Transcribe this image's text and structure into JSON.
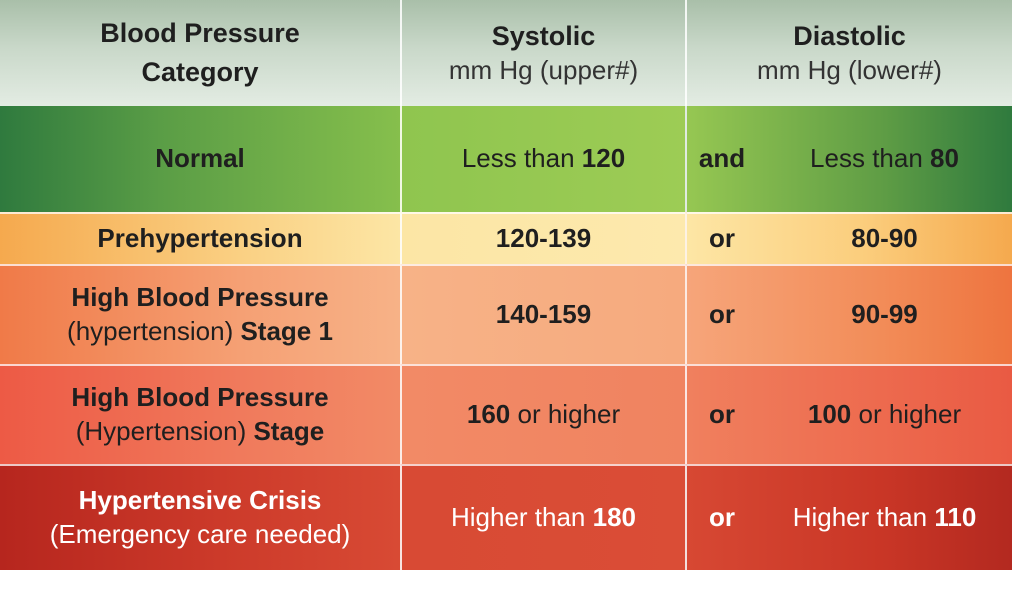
{
  "header": {
    "category_line1": "Blood Pressure",
    "category_line2": "Category",
    "systolic_title": "Systolic",
    "systolic_sub": "mm Hg (upper#)",
    "diastolic_title": "Diastolic",
    "diastolic_sub": "mm Hg (lower#)"
  },
  "rows": [
    {
      "category_bold": "Normal",
      "systolic_pre": "Less than ",
      "systolic_bold": "120",
      "conjunction": "and",
      "diastolic_pre": "Less than ",
      "diastolic_bold": "80",
      "color": "#8fc54f"
    },
    {
      "category_bold": "Prehypertension",
      "systolic_bold": "120-139",
      "conjunction": "or",
      "diastolic_bold": "80-90",
      "color": "#fde6a5"
    },
    {
      "category_line1": "High Blood Pressure",
      "category_line2_pre": "(hypertension) ",
      "category_line2_bold": "Stage 1",
      "systolic_bold": "140-159",
      "conjunction": "or",
      "diastolic_bold": "90-99",
      "color": "#f6aa7e"
    },
    {
      "category_line1": "High Blood Pressure",
      "category_line2_pre": "(Hypertension) ",
      "category_line2_bold": "Stage",
      "systolic_bold": "160",
      "systolic_post": " or higher",
      "conjunction": "or",
      "diastolic_bold": "100",
      "diastolic_post": " or higher",
      "color": "#f08360"
    },
    {
      "category_line1": "Hypertensive Crisis",
      "category_line2": "(Emergency care needed)",
      "systolic_pre": "Higher than ",
      "systolic_bold": "180",
      "conjunction": "or",
      "diastolic_pre": "Higher than ",
      "diastolic_bold": "110",
      "color": "#d84a34"
    }
  ]
}
